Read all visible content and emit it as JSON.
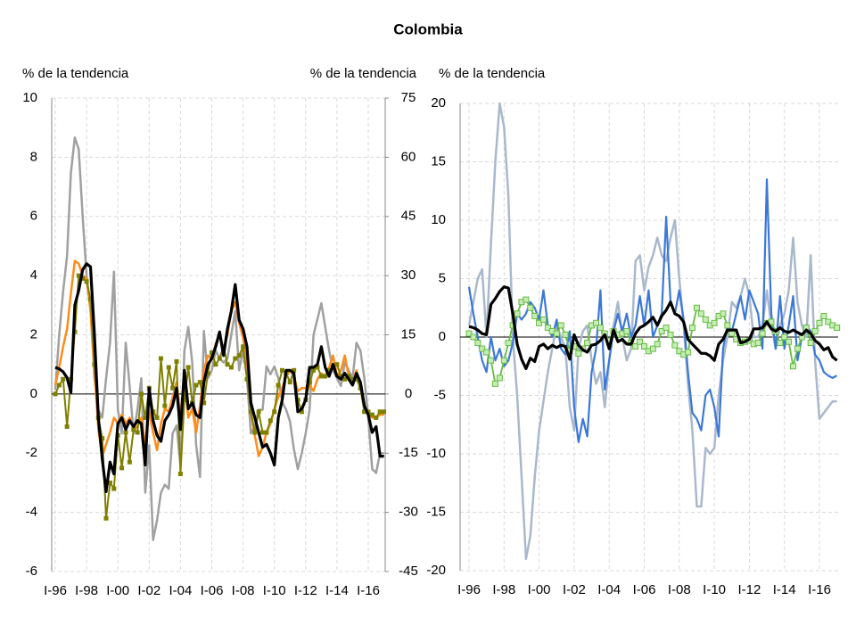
{
  "chart_data": [
    {
      "type": "line",
      "title": "Colombia",
      "ylabel": "% de la tendencia",
      "y2label": "% de la tendencia",
      "grid": true,
      "categories": [
        "I-96",
        null,
        null,
        null,
        null,
        null,
        null,
        null,
        "I-98",
        null,
        null,
        null,
        null,
        null,
        null,
        null,
        "I-00",
        null,
        null,
        null,
        null,
        null,
        null,
        null,
        "I-02",
        null,
        null,
        null,
        null,
        null,
        null,
        null,
        "I-04",
        null,
        null,
        null,
        null,
        null,
        null,
        null,
        "I-06",
        null,
        null,
        null,
        null,
        null,
        null,
        null,
        "I-08",
        null,
        null,
        null,
        null,
        null,
        null,
        null,
        "I-10",
        null,
        null,
        null,
        null,
        null,
        null,
        null,
        "I-12",
        null,
        null,
        null,
        null,
        null,
        null,
        null,
        "I-14",
        null,
        null,
        null,
        null,
        null,
        null,
        null,
        "I-16",
        null,
        null,
        null,
        null
      ],
      "ylim": [
        -6,
        10
      ],
      "yticks": [
        -6,
        -4,
        -2,
        0,
        2,
        4,
        6,
        8,
        10
      ],
      "y2lim": [
        -45,
        75
      ],
      "y2ticks": [
        -45,
        -30,
        -15,
        0,
        15,
        30,
        45,
        60,
        75
      ],
      "series": [
        {
          "color": "#a0a0a0",
          "axis": "y2",
          "width": 2.5,
          "values": [
            1,
            15,
            26,
            35,
            56,
            65,
            62,
            45,
            30,
            22,
            4,
            -4,
            -6,
            4,
            13,
            31,
            -4,
            -10,
            13,
            2,
            -10,
            -4,
            4,
            -25,
            -13,
            -37,
            -32,
            -25,
            -23,
            -24,
            -10,
            -8,
            -18,
            11,
            17,
            8,
            -13,
            -21,
            16,
            4,
            6,
            11,
            9,
            8,
            9,
            15,
            21,
            6,
            11,
            4,
            -10,
            -8,
            -4,
            -4,
            7,
            5,
            7,
            4,
            -2,
            -4,
            -7,
            -14,
            -19,
            -15,
            -10,
            -4,
            15,
            19,
            23,
            17,
            11,
            6,
            4,
            2,
            8,
            6,
            4,
            13,
            11,
            4,
            -6,
            -19,
            -20,
            -15,
            -15
          ]
        },
        {
          "color": "#ff8c1a",
          "width": 2.5,
          "values": [
            0.3,
            0.9,
            1.6,
            2.2,
            3.4,
            4.5,
            4.4,
            4.0,
            3.9,
            2.8,
            0.8,
            -1.2,
            -2.1,
            -1.7,
            -1.3,
            -0.8,
            -1.0,
            -0.7,
            -1.0,
            -0.8,
            -1.2,
            -1.1,
            -0.8,
            -1.7,
            -0.6,
            -1.3,
            -1.9,
            -1.0,
            -0.5,
            -0.6,
            -0.1,
            0.4,
            -0.7,
            0.5,
            -0.8,
            -0.5,
            -1.3,
            -0.4,
            0.8,
            1.3,
            1.2,
            1.7,
            2.0,
            1.5,
            2.0,
            2.8,
            3.1,
            2.4,
            1.9,
            0.9,
            -0.6,
            -1.4,
            -2.1,
            -1.8,
            -1.3,
            -1.0,
            -0.5,
            -0.1,
            0.2,
            0.6,
            0.8,
            0.6,
            0.1,
            0.2,
            0.2,
            0.3,
            0.1,
            0.5,
            0.7,
            0.6,
            0.9,
            1.3,
            0.6,
            0.8,
            1.3,
            0.6,
            0.4,
            0.8,
            0.2,
            -0.5,
            -0.7,
            -0.8,
            -0.8,
            -0.7,
            -0.7
          ]
        },
        {
          "color": "#808000",
          "width": 2,
          "marker": "square",
          "values": [
            0.0,
            0.3,
            0.5,
            -1.1,
            0.5,
            2.1,
            4.0,
            3.9,
            3.8,
            3.2,
            1.0,
            -0.8,
            -1.5,
            -4.2,
            -3.0,
            -3.2,
            -1.4,
            -2.5,
            -1.3,
            -2.3,
            -1.2,
            -1.3,
            0.0,
            -0.8,
            0.2,
            -0.6,
            -0.8,
            1.2,
            -0.4,
            0.9,
            0.2,
            1.1,
            -2.7,
            -0.2,
            0.9,
            -0.3,
            0.3,
            0.4,
            -0.3,
            0.7,
            1.4,
            1.0,
            1.2,
            1.6,
            1.0,
            0.9,
            1.2,
            1.3,
            1.6,
            0.5,
            -0.6,
            -1.3,
            -0.6,
            -1.3,
            -1.3,
            -0.9,
            -0.6,
            0.3,
            0.8,
            0.7,
            0.4,
            0.8,
            -0.2,
            -0.6,
            -0.2,
            0.4,
            0.8,
            0.9,
            0.6,
            0.6,
            0.8,
            0.9,
            1.0,
            0.6,
            0.5,
            0.6,
            0.5,
            0.5,
            0.2,
            -0.6,
            -0.6,
            -0.7,
            -0.8,
            -0.6,
            -0.6
          ]
        },
        {
          "color": "#000000",
          "width": 3.2,
          "values": [
            0.9,
            0.85,
            0.75,
            0.55,
            0.05,
            3.0,
            3.5,
            4.2,
            4.4,
            4.3,
            2.0,
            -0.8,
            -2.2,
            -3.3,
            -2.3,
            -2.7,
            -1.0,
            -0.8,
            -1.2,
            -0.9,
            -1.1,
            -0.9,
            -1.0,
            -2.4,
            0.2,
            -0.9,
            -1.4,
            -1.6,
            -0.9,
            -0.7,
            -0.4,
            0.2,
            -1.2,
            0.8,
            -0.5,
            -0.3,
            -0.7,
            -0.8,
            0.4,
            1.0,
            1.2,
            1.6,
            2.1,
            1.3,
            2.2,
            2.8,
            3.7,
            2.5,
            2.2,
            1.6,
            -0.3,
            -0.8,
            -1.3,
            -1.8,
            -1.7,
            -2.0,
            -2.4,
            -0.8,
            -0.2,
            0.8,
            0.8,
            0.7,
            -0.6,
            -0.5,
            -0.2,
            0.9,
            0.9,
            1.0,
            1.6,
            0.9,
            0.6,
            1.0,
            0.6,
            0.5,
            0.7,
            0.5,
            0.3,
            0.7,
            0.4,
            -0.4,
            -0.7,
            -1.3,
            -1.1,
            -2.1,
            -2.1
          ]
        }
      ]
    },
    {
      "type": "line",
      "ylabel": "% de la tendencia",
      "grid": true,
      "categories": [
        "I-96",
        null,
        null,
        null,
        null,
        null,
        null,
        null,
        "I-98",
        null,
        null,
        null,
        null,
        null,
        null,
        null,
        "I-00",
        null,
        null,
        null,
        null,
        null,
        null,
        null,
        "I-02",
        null,
        null,
        null,
        null,
        null,
        null,
        null,
        "I-04",
        null,
        null,
        null,
        null,
        null,
        null,
        null,
        "I-06",
        null,
        null,
        null,
        null,
        null,
        null,
        null,
        "I-08",
        null,
        null,
        null,
        null,
        null,
        null,
        null,
        "I-10",
        null,
        null,
        null,
        null,
        null,
        null,
        null,
        "I-12",
        null,
        null,
        null,
        null,
        null,
        null,
        null,
        "I-14",
        null,
        null,
        null,
        null,
        null,
        null,
        null,
        "I-16",
        null,
        null,
        null,
        null
      ],
      "ylim": [
        -20,
        20
      ],
      "yticks": [
        -20,
        -15,
        -10,
        -5,
        0,
        5,
        10,
        15,
        20
      ],
      "series": [
        {
          "color": "#aab8cc",
          "width": 2.5,
          "values": [
            1,
            3,
            5,
            5.8,
            0,
            8,
            15,
            20,
            18,
            12,
            0,
            -5,
            -12,
            -19,
            -17,
            -12,
            -8,
            -5.5,
            -3,
            -1,
            1,
            0,
            -1,
            -6,
            -8,
            -1,
            0.5,
            1,
            -2,
            -4,
            -3,
            -6,
            -2,
            1,
            3,
            0,
            -2,
            -1,
            6.5,
            7,
            4,
            6,
            7,
            8.5,
            7,
            6.5,
            8.5,
            10,
            5,
            1,
            -4,
            -8,
            -14.5,
            -14.5,
            -9.5,
            -10,
            -9.5,
            -5,
            -2,
            0,
            3,
            2.5,
            3.5,
            5,
            3.5,
            0,
            0,
            1,
            4,
            1,
            -1,
            1,
            2,
            4,
            8.5,
            3,
            1,
            0,
            7,
            -2,
            -7,
            -6.5,
            -6,
            -5.5,
            -5.5
          ]
        },
        {
          "color": "#3c78d8",
          "width": 2.2,
          "values": [
            4.3,
            2,
            0,
            -2,
            -3,
            0,
            -2,
            -1,
            -2.5,
            -2,
            -0.5,
            2,
            1.5,
            2,
            3,
            2.5,
            1.5,
            4,
            1,
            0,
            1.5,
            -1,
            -1.5,
            0.5,
            -6,
            -9,
            -7,
            -8.5,
            -3,
            -1,
            4,
            -4.5,
            -2,
            0.5,
            2,
            0.5,
            2,
            0,
            1,
            3.5,
            1,
            4,
            0,
            1,
            2,
            10.3,
            3,
            2,
            4,
            1.5,
            -3,
            -6.5,
            -7,
            -8,
            -5,
            -4.5,
            -6,
            -8.5,
            -1,
            1,
            0.5,
            2,
            3.5,
            1.5,
            4,
            3,
            2,
            -1,
            13.5,
            2,
            -1,
            3.5,
            -1,
            1,
            3.5,
            -2,
            0,
            1,
            0.5,
            -1.5,
            -2,
            -3,
            -3.3,
            -3.5,
            -3.3
          ]
        },
        {
          "color": "#66bb44",
          "width": 1.8,
          "marker": "square",
          "values": [
            0.3,
            0,
            -0.5,
            -1,
            -1.3,
            -2,
            -4,
            -3.5,
            -2,
            -0.5,
            1,
            2,
            3,
            3.2,
            2.5,
            1.8,
            1.2,
            1.5,
            0.8,
            0.5,
            0.3,
            1,
            0.2,
            -1.2,
            -0.8,
            -1.4,
            -1,
            -0.5,
            1,
            1.2,
            0.8,
            0.3,
            -0.3,
            0.5,
            0.2,
            0.3,
            0.5,
            -0.5,
            -0.8,
            -0.4,
            -0.8,
            -1.2,
            -1,
            -0.6,
            0.5,
            0.8,
            0.2,
            -0.7,
            -1.2,
            -1.5,
            -1.3,
            0.8,
            2.5,
            2,
            1.5,
            1,
            1.2,
            1.8,
            2,
            1,
            0.3,
            -0.2,
            -0.5,
            -0.4,
            -0.3,
            -0.6,
            -0.5,
            0.3,
            1.2,
            1.3,
            0.5,
            -0.5,
            0,
            -0.4,
            -2.5,
            -1,
            0,
            0.8,
            -0.5,
            0.5,
            1.2,
            1.8,
            1.3,
            1,
            0.8
          ]
        },
        {
          "color": "#000000",
          "width": 3.2,
          "values": [
            0.9,
            0.8,
            0.6,
            0.3,
            0.2,
            2.8,
            3.3,
            3.9,
            4.3,
            4.2,
            2.0,
            -0.6,
            -1.9,
            -2.7,
            -1.8,
            -2.1,
            -0.8,
            -0.6,
            -1.0,
            -0.7,
            -0.9,
            -0.7,
            -0.8,
            -1.9,
            0.2,
            -0.7,
            -1.1,
            -1.3,
            -0.7,
            -0.6,
            -0.3,
            0.2,
            -1.0,
            0.6,
            -0.4,
            -0.2,
            -0.6,
            -0.6,
            0.3,
            0.8,
            1.0,
            1.3,
            1.7,
            1.0,
            1.8,
            2.3,
            3.0,
            2.0,
            1.8,
            1.3,
            -0.2,
            -0.6,
            -1.0,
            -1.4,
            -1.4,
            -1.6,
            -2.0,
            -0.6,
            -0.2,
            0.6,
            0.6,
            0.6,
            -0.5,
            -0.4,
            -0.2,
            0.7,
            0.7,
            0.8,
            1.3,
            0.7,
            0.5,
            0.8,
            0.5,
            0.4,
            0.6,
            0.4,
            0.2,
            0.6,
            0.3,
            -0.3,
            -0.6,
            -1.1,
            -0.9,
            -1.7,
            -2.0
          ]
        }
      ]
    }
  ]
}
